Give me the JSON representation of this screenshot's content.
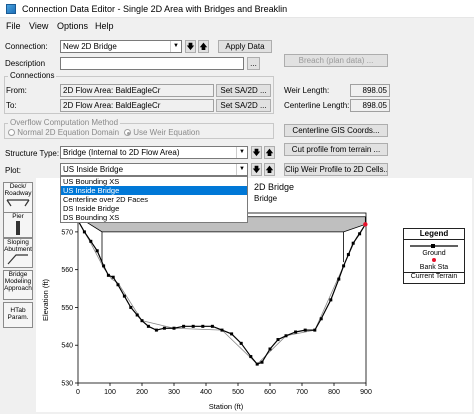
{
  "window": {
    "title": "Connection Data Editor - Single 2D Area with Bridges and Breaklin"
  },
  "menu": [
    "File",
    "View",
    "Options",
    "Help"
  ],
  "connection": {
    "label": "Connection:",
    "value": "New 2D Bridge",
    "apply_label": "Apply Data",
    "breach_label": "Breach (plan data) ..."
  },
  "description": {
    "label": "Description",
    "value": "",
    "more_label": "..."
  },
  "connections_group": {
    "title": "Connections",
    "from_label": "From:",
    "from_value": "2D Flow Area: BaldEagleCr",
    "to_label": "To:",
    "to_value": "2D Flow Area: BaldEagleCr",
    "set_label": "Set SA/2D ..."
  },
  "weir_length": {
    "label": "Weir Length:",
    "value": "898.05"
  },
  "centerline_length": {
    "label": "Centerline Length:",
    "value": "898.05"
  },
  "overflow_group": {
    "title": "Overflow Computation Method",
    "normal_label": "Normal 2D Equation Domain",
    "weir_label": "Use Weir Equation"
  },
  "centerline_gis_label": "Centerline GIS Coords...",
  "cut_profile_label": "Cut profile from terrain ...",
  "clip_weir_label": "Clip Weir Profile to 2D Cells...",
  "structure_type": {
    "label": "Structure Type:",
    "value": "Bridge (Internal to 2D Flow Area)"
  },
  "plot": {
    "label": "Plot:",
    "value": "US Inside Bridge",
    "options": [
      "US Bounding XS",
      "US Inside Bridge",
      "Centerline over 2D Faces",
      "DS Inside Bridge",
      "DS Bounding XS"
    ],
    "selected_index": 1
  },
  "plot_title_fragments": {
    "line1": "2D Bridge",
    "line2": "Bridge"
  },
  "sidebar": [
    {
      "label1": "Deck/",
      "label2": "Roadway"
    },
    {
      "label1": "Pier",
      "label2": ""
    },
    {
      "label1": "Sloping",
      "label2": "Abutment"
    },
    {
      "label1": "Bridge",
      "label2": "Modeling",
      "label3": "Approach"
    },
    {
      "label1": "HTab",
      "label2": "Param."
    }
  ],
  "colors": {
    "deck_fill": "#bfbfbf",
    "ground": "#000000",
    "bank_sta": "#e8102a",
    "terrain": "#888888",
    "accent": "#0078d7"
  },
  "chart_data": {
    "type": "line",
    "xlabel": "Station (ft)",
    "ylabel": "Elevation (ft)",
    "xlim": [
      0,
      900
    ],
    "ylim": [
      530,
      575
    ],
    "xticks": [
      0,
      100,
      200,
      300,
      400,
      500,
      600,
      700,
      800,
      900
    ],
    "yticks": [
      530,
      540,
      550,
      560,
      570
    ],
    "deck": {
      "high_chord": [
        [
          0,
          574
        ],
        [
          898,
          574
        ]
      ],
      "low_chord": [
        [
          0,
          574
        ],
        [
          75,
          570
        ],
        [
          830,
          570
        ],
        [
          898,
          572
        ]
      ],
      "abutment_left": [
        [
          75,
          570
        ],
        [
          75,
          562
        ]
      ],
      "abutment_right": [
        [
          830,
          570
        ],
        [
          830,
          562
        ]
      ]
    },
    "series": [
      {
        "name": "Ground",
        "values": [
          [
            0,
            573
          ],
          [
            20,
            570
          ],
          [
            40,
            567.5
          ],
          [
            60,
            565
          ],
          [
            80,
            561
          ],
          [
            95,
            558.5
          ],
          [
            110,
            558
          ],
          [
            125,
            556
          ],
          [
            145,
            553
          ],
          [
            165,
            550
          ],
          [
            185,
            548
          ],
          [
            200,
            546.5
          ],
          [
            220,
            545
          ],
          [
            245,
            544
          ],
          [
            270,
            544.5
          ],
          [
            300,
            544.5
          ],
          [
            330,
            545
          ],
          [
            360,
            545
          ],
          [
            390,
            545
          ],
          [
            420,
            545
          ],
          [
            450,
            544
          ],
          [
            480,
            543
          ],
          [
            510,
            540.5
          ],
          [
            540,
            537
          ],
          [
            560,
            535
          ],
          [
            575,
            535.5
          ],
          [
            600,
            539
          ],
          [
            625,
            541.5
          ],
          [
            650,
            542.5
          ],
          [
            680,
            543.5
          ],
          [
            710,
            544
          ],
          [
            740,
            544
          ],
          [
            760,
            547
          ],
          [
            790,
            552
          ],
          [
            815,
            557.5
          ],
          [
            830,
            561
          ],
          [
            845,
            564
          ],
          [
            860,
            567
          ],
          [
            880,
            569.5
          ],
          [
            898,
            572
          ]
        ]
      },
      {
        "name": "Current Terrain",
        "values": [
          [
            0,
            573
          ],
          [
            40,
            567
          ],
          [
            80,
            560.5
          ],
          [
            105,
            557.5
          ],
          [
            125,
            556.5
          ],
          [
            200,
            546.5
          ],
          [
            300,
            544.5
          ],
          [
            450,
            544
          ],
          [
            560,
            535
          ],
          [
            650,
            542.5
          ],
          [
            740,
            544
          ],
          [
            830,
            561
          ],
          [
            870,
            568.5
          ],
          [
            898,
            572
          ]
        ]
      }
    ],
    "bank_stations": [
      [
        0,
        573
      ],
      [
        898,
        572
      ]
    ],
    "legend": {
      "title": "Legend",
      "entries": [
        "Ground",
        "Bank Sta",
        "Current Terrain"
      ]
    }
  }
}
